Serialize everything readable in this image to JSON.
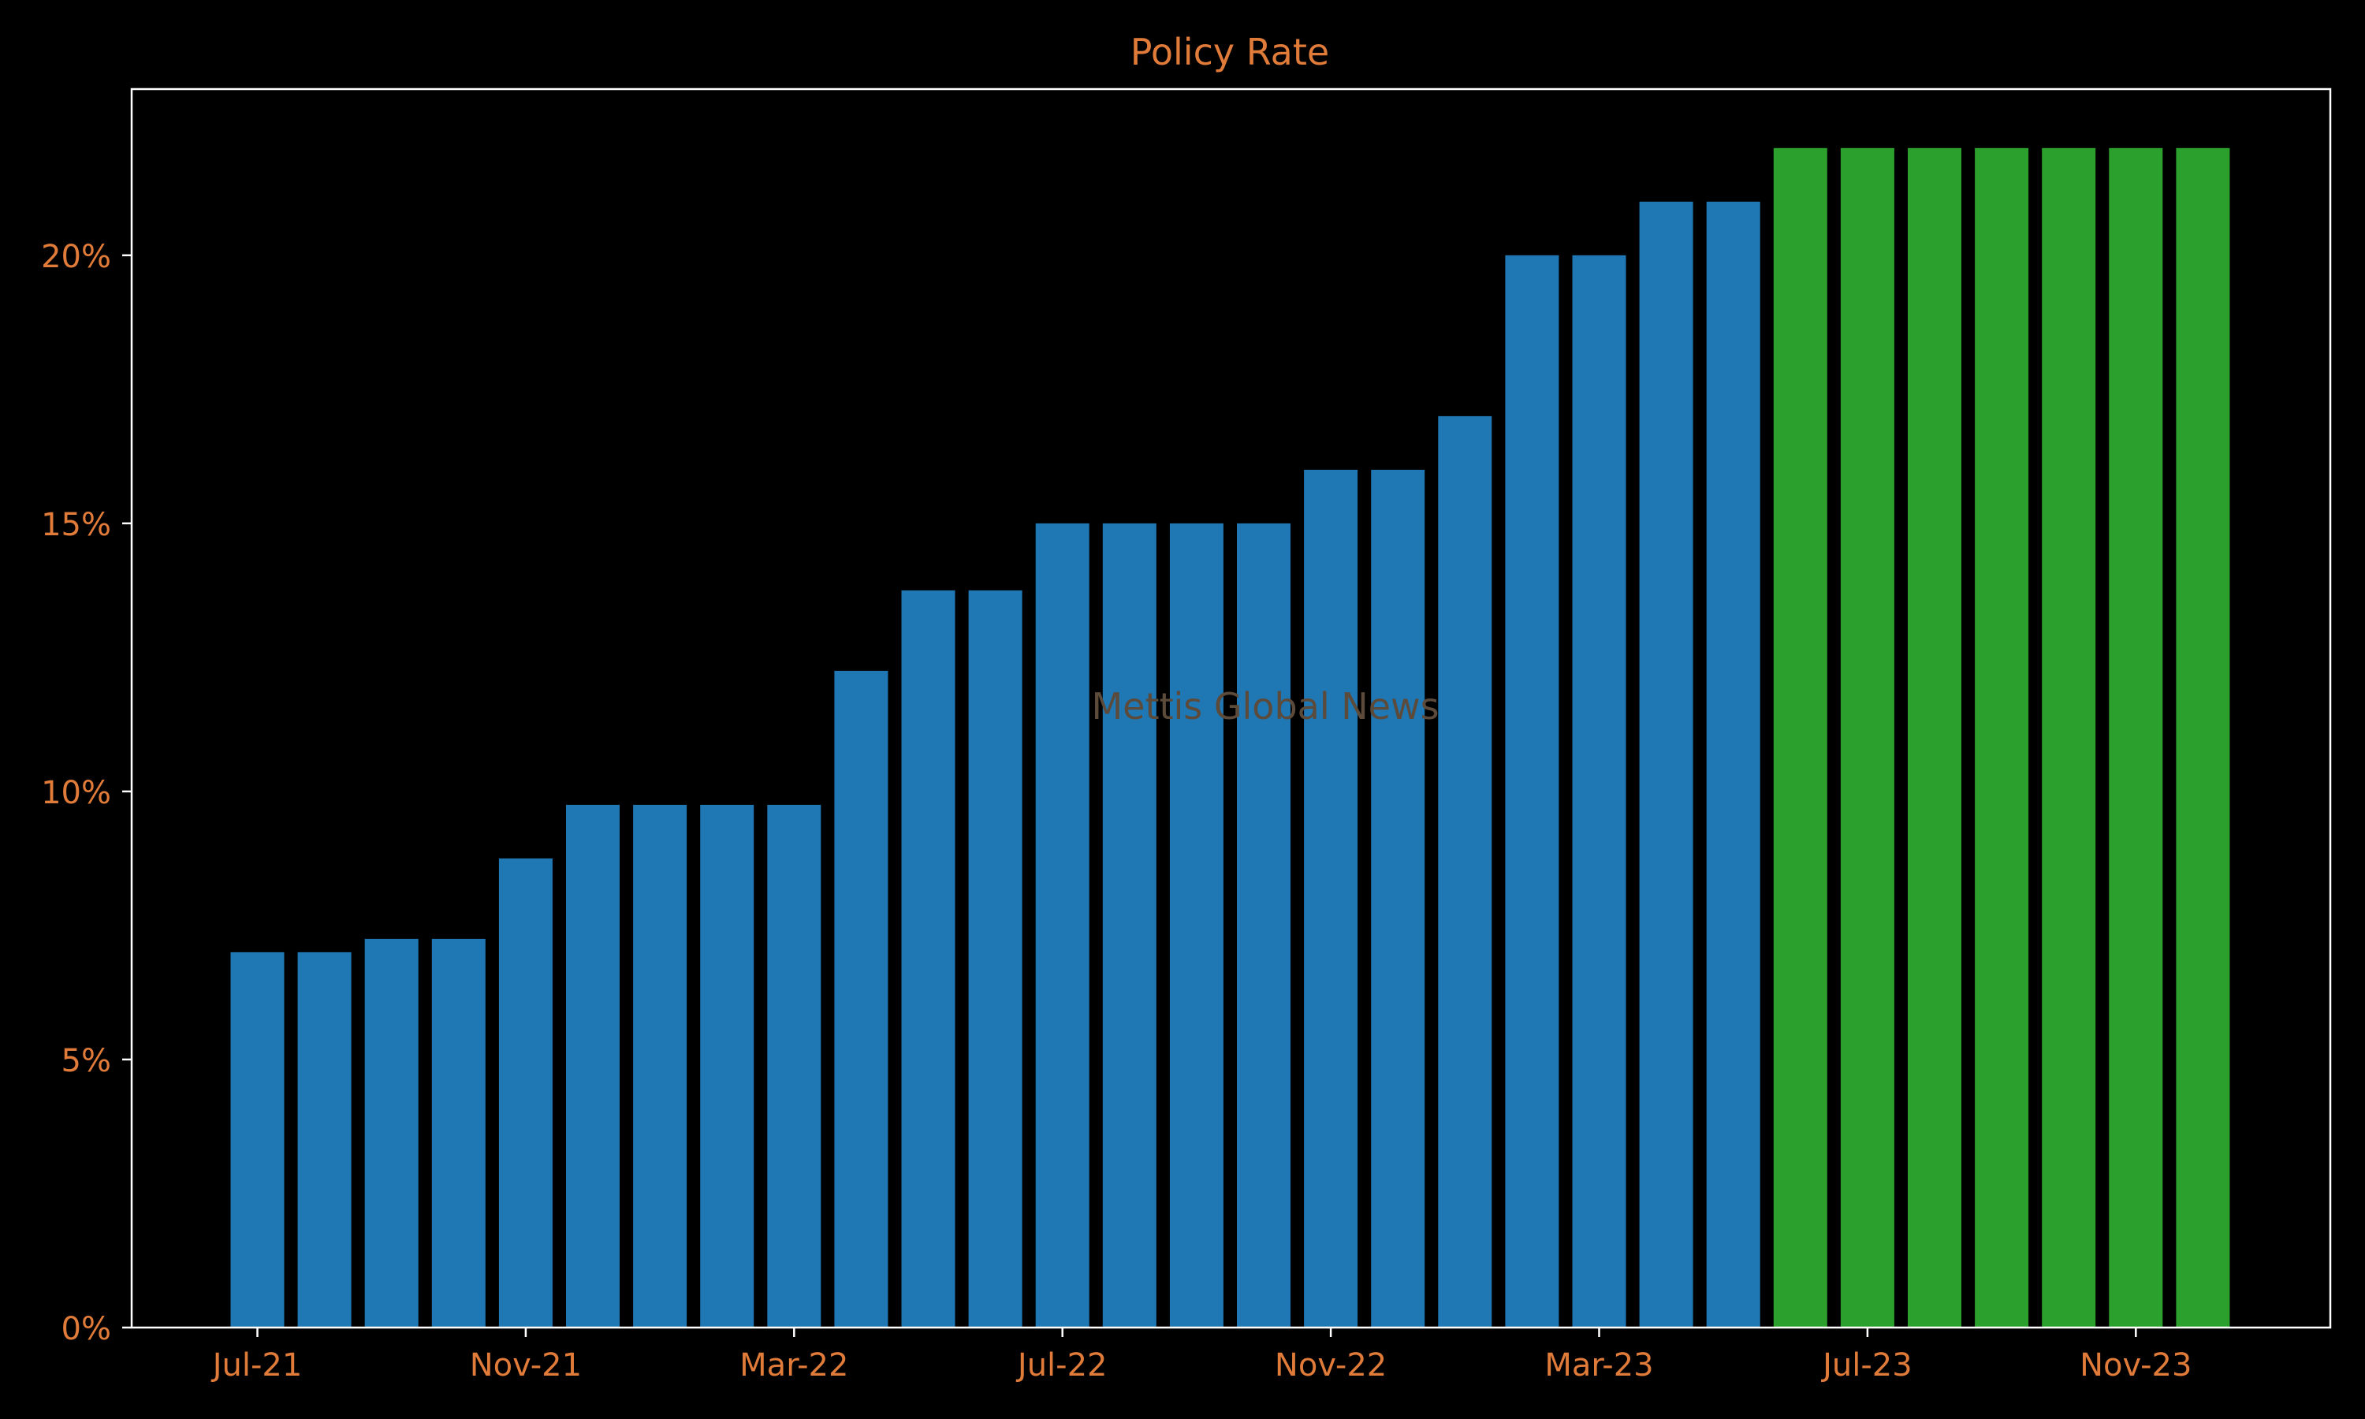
{
  "colors": {
    "background": "#000000",
    "axes": "#ffffff",
    "text": "#e07b39",
    "actual_bar": "#1f77b4",
    "highlight_bar": "#2ca02c",
    "watermark": "#5c4a3a"
  },
  "watermark": "Mettis Global News",
  "chart_data": {
    "type": "bar",
    "title": "Policy Rate",
    "xlabel": "",
    "ylabel": "",
    "ylim": [
      0,
      23.1
    ],
    "yticks": [
      0,
      5,
      10,
      15,
      20
    ],
    "ytick_format": "{v}%",
    "grid": false,
    "legend": "none",
    "categories": [
      "Jul-21",
      "Aug-21",
      "Sep-21",
      "Oct-21",
      "Nov-21",
      "Dec-21",
      "Jan-22",
      "Feb-22",
      "Mar-22",
      "Apr-22",
      "May-22",
      "Jun-22",
      "Jul-22",
      "Aug-22",
      "Sep-22",
      "Oct-22",
      "Nov-22",
      "Dec-22",
      "Jan-23",
      "Feb-23",
      "Mar-23",
      "Apr-23",
      "May-23",
      "Jun-23",
      "Jul-23",
      "Aug-23",
      "Sep-23",
      "Oct-23",
      "Nov-23",
      "Dec-23"
    ],
    "values": [
      7.0,
      7.0,
      7.25,
      7.25,
      8.75,
      9.75,
      9.75,
      9.75,
      9.75,
      12.25,
      13.75,
      13.75,
      15.0,
      15.0,
      15.0,
      15.0,
      16.0,
      16.0,
      17.0,
      20.0,
      20.0,
      21.0,
      21.0,
      22.0,
      22.0,
      22.0,
      22.0,
      22.0,
      22.0,
      22.0
    ],
    "highlight_from": "Jun-23",
    "xtick_labels": [
      "Jul-21",
      "Nov-21",
      "Mar-22",
      "Jul-22",
      "Nov-22",
      "Mar-23",
      "Jul-23",
      "Nov-23"
    ]
  }
}
